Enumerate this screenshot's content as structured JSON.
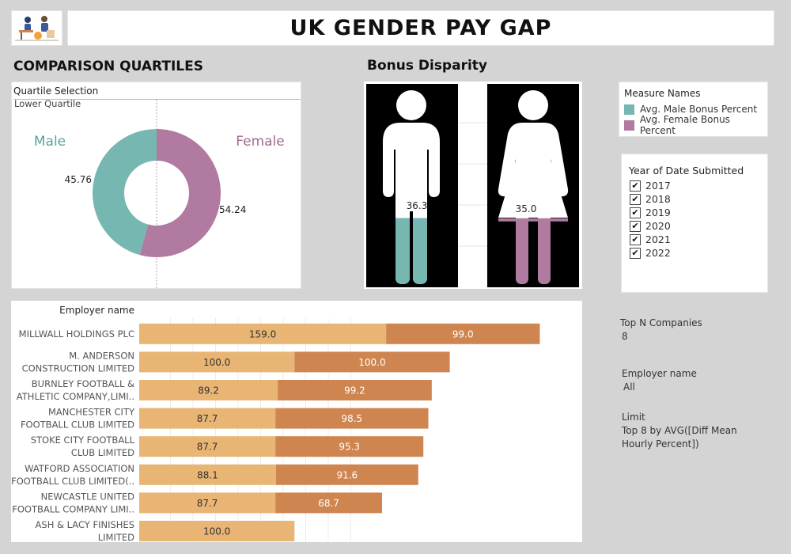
{
  "header": {
    "title": "UK GENDER PAY GAP",
    "logo_icon": "office-workers-icon"
  },
  "quartiles": {
    "title": "COMPARISON QUARTILES",
    "filter_label": "Quartile Selection",
    "filter_value": "Lower Quartile"
  },
  "bonus": {
    "title": "Bonus Disparity"
  },
  "legend": {
    "title": "Measure Names",
    "items": [
      {
        "label": "Avg. Male Bonus Percent",
        "color": "#76b7b2"
      },
      {
        "label": "Avg. Female Bonus Percent",
        "color": "#b07aa1"
      }
    ]
  },
  "year_filter": {
    "title": "Year of Date Submitted",
    "years": [
      "2017",
      "2018",
      "2019",
      "2020",
      "2021",
      "2022"
    ]
  },
  "info": {
    "topn_label": "Top N Companies",
    "topn_value": "8",
    "employer_label": "Employer name",
    "employer_value": "All",
    "limit_label": "Limit",
    "limit_line1": "Top 8 by AVG([Diff Mean",
    "limit_line2": "Hourly Percent])"
  },
  "colors": {
    "male": "#76b7b2",
    "female": "#b07aa1",
    "bar_light": "#e9b574",
    "bar_dark": "#cf8550"
  },
  "chart_data": [
    {
      "type": "pie",
      "labels": [
        "Male",
        "Female"
      ],
      "values": [
        45.76,
        54.24
      ],
      "value_labels": [
        "45.76",
        "54.24"
      ]
    },
    {
      "type": "bar",
      "categories": [
        "Male",
        "Female"
      ],
      "values": [
        36.3,
        35.0
      ],
      "value_labels": [
        "36.3",
        "35.0"
      ]
    },
    {
      "type": "bar",
      "orientation": "horizontal",
      "stacked": true,
      "ylabel": "Employer name",
      "categories": [
        [
          "MILLWALL HOLDINGS PLC"
        ],
        [
          "M. ANDERSON",
          "CONSTRUCTION LIMITED"
        ],
        [
          "BURNLEY FOOTBALL &",
          "ATHLETIC COMPANY,LIMI.."
        ],
        [
          "MANCHESTER CITY",
          "FOOTBALL CLUB LIMITED"
        ],
        [
          "STOKE CITY FOOTBALL",
          "CLUB LIMITED"
        ],
        [
          "WATFORD ASSOCIATION",
          "FOOTBALL CLUB LIMITED(.."
        ],
        [
          "NEWCASTLE UNITED",
          "FOOTBALL COMPANY LIMI.."
        ],
        [
          "ASH & LACY FINISHES",
          "LIMITED"
        ]
      ],
      "series": [
        {
          "values": [
            159.0,
            100.0,
            89.2,
            87.7,
            87.7,
            88.1,
            87.7,
            100.0
          ],
          "labels": [
            "159.0",
            "100.0",
            "89.2",
            "87.7",
            "87.7",
            "88.1",
            "87.7",
            "100.0"
          ]
        },
        {
          "values": [
            99.0,
            100.0,
            99.2,
            98.5,
            95.3,
            91.6,
            68.7,
            null
          ],
          "labels": [
            "99.0",
            "100.0",
            "99.2",
            "98.5",
            "95.3",
            "91.6",
            "68.7",
            ""
          ]
        }
      ],
      "xlim": [
        0,
        270
      ]
    }
  ]
}
